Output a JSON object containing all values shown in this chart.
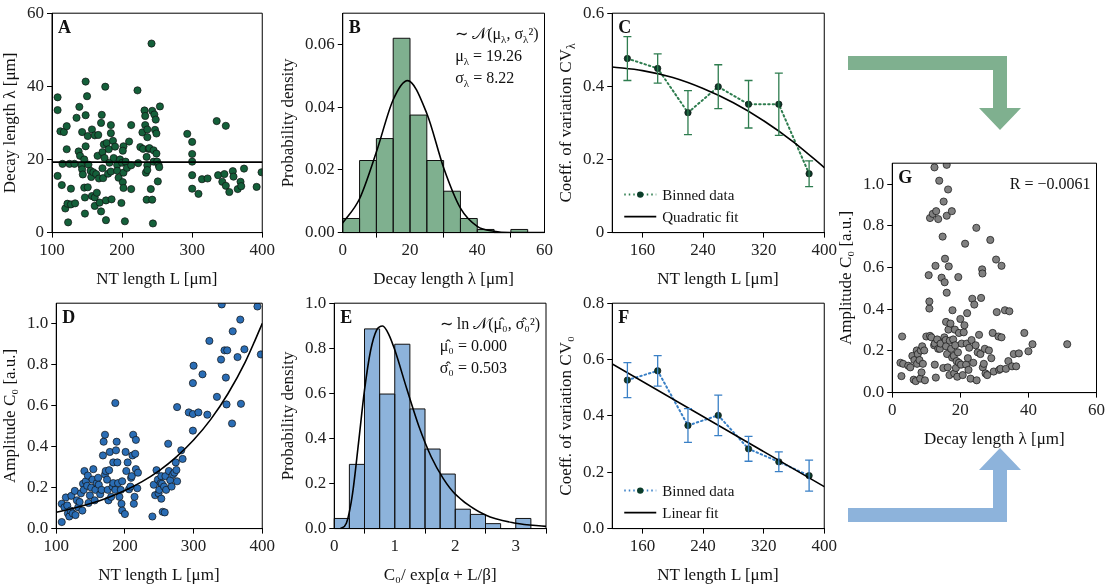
{
  "chart_data": [
    {
      "type": "scatter",
      "title": "A",
      "xlabel": "NT length $_{}$L [μm]",
      "ylabel": "Decay length λ [μm]",
      "xlim": [
        100,
        400
      ],
      "xticks": [
        100,
        200,
        300,
        400
      ],
      "ylim": [
        0,
        60
      ],
      "yticks": [
        0,
        20,
        40,
        60
      ],
      "ref_lines": [
        {
          "axis": "y",
          "value": 19.26,
          "color": "#000000"
        }
      ],
      "series": [
        {
          "color": "#14603a",
          "marker": "circle",
          "x": [
            108,
            108,
            108,
            112,
            117,
            115,
            114,
            119,
            121,
            121,
            122,
            123,
            125,
            127,
            127,
            132,
            135,
            133,
            138,
            139,
            140,
            142,
            143,
            144,
            143,
            146,
            146,
            148,
            148,
            148,
            147,
            147,
            150,
            152,
            151,
            151,
            155,
            156,
            157,
            157,
            159,
            161,
            161,
            161,
            163,
            165,
            164,
            166,
            167,
            168,
            170,
            170,
            172,
            172,
            171,
            173,
            174,
            175,
            177,
            176,
            177,
            178,
            180,
            181,
            182,
            184,
            184,
            184,
            185,
            187,
            188,
            190,
            193,
            193,
            195,
            197,
            199,
            200,
            201,
            202,
            201,
            202,
            202,
            204,
            205,
            207,
            210,
            213,
            213,
            213,
            222,
            223,
            226,
            229,
            230,
            232,
            233,
            233,
            234,
            235,
            235,
            236,
            236,
            236,
            236,
            238,
            239,
            241,
            242,
            243,
            243,
            244,
            245,
            245,
            246,
            247,
            248,
            249,
            249,
            250,
            251,
            252,
            253,
            254,
            293,
            300,
            300,
            300,
            300,
            300,
            309,
            314,
            322,
            335,
            337,
            343,
            346,
            348,
            348,
            353,
            358,
            359,
            365,
            369,
            370,
            374,
            392,
            399
          ],
          "values": [
            37.0,
            33.5,
            15.5,
            27.7,
            27.5,
            18.8,
            13.0,
            6.6,
            22.8,
            29.1,
            7.9,
            2.8,
            18.8,
            12.0,
            7.7,
            18.8,
            31.4,
            8.0,
            22.2,
            34.4,
            21.0,
            18.4,
            17.3,
            15.9,
            27.5,
            20.0,
            12.3,
            23.6,
            41.3,
            32.1,
            9.6,
            5.2,
            37.3,
            18.6,
            12.4,
            26.4,
            16.9,
            15.2,
            10.0,
            28.2,
            16.5,
            9.6,
            26.6,
            7.3,
            16.0,
            21.0,
            10.9,
            26.7,
            14.8,
            8.2,
            30.0,
            5.8,
            22.0,
            17.6,
            32.2,
            14.9,
            24.1,
            20.4,
            8.8,
            39.9,
            3.4,
            24.5,
            16.1,
            22.8,
            19.1,
            27.2,
            29.4,
            16.7,
            9.1,
            25.1,
            20.4,
            23.5,
            18.5,
            16.9,
            15.0,
            20.0,
            8.1,
            19.1,
            13.8,
            23.6,
            22.4,
            16.4,
            12.2,
            3.1,
            19.4,
            17.7,
            24.9,
            18.4,
            29.4,
            11.9,
            38.9,
            19.0,
            23.4,
            27.4,
            22.9,
            33.4,
            31.9,
            29.4,
            16.4,
            9.0,
            20.7,
            18.4,
            17.1,
            26.1,
            28.2,
            22.9,
            23.1,
            11.9,
            51.7,
            33.3,
            9.0,
            2.5,
            22.5,
            19.4,
            32.3,
            28.1,
            30.9,
            21.6,
            27.1,
            19.4,
            14.0,
            18.6,
            17.9,
            34.5,
            27.0,
            24.8,
            21.5,
            19.4,
            15.7,
            12.0,
            10.6,
            14.6,
            14.8,
            30.5,
            15.7,
            13.9,
            16.0,
            29.2,
            12.8,
            11.1,
            16.8,
            15.3,
            11.9,
            13.9,
            12.7,
            17.5,
            12.5,
            16.5
          ]
        }
      ]
    },
    {
      "type": "histogram",
      "title": "B",
      "xlabel": "Decay length λ [μm]",
      "ylabel": "Probability density",
      "xlim": [
        0,
        60
      ],
      "xticks": [
        0,
        20,
        40,
        60
      ],
      "ylim": [
        0,
        0.07
      ],
      "yticks": [
        {
          "value": 0,
          "label": "0.00"
        },
        {
          "value": 0.02,
          "label": "0.02"
        },
        {
          "value": 0.04,
          "label": "0.04"
        },
        {
          "value": 0.06,
          "label": "0.06"
        }
      ],
      "bins": [
        0,
        5,
        10,
        15,
        20,
        25,
        30,
        35,
        40,
        45,
        50,
        55
      ],
      "annotations": [
        "∼ 𝒩(μ$_{λ}$, σ$_{λ}$²)",
        "μ$_{λ}$ = 19.26",
        "σ$_{λ}$ = 8.22"
      ],
      "series": [
        {
          "color": "#7fb08f",
          "values": [
            0.0045,
            0.023,
            0.03,
            0.062,
            0.0375,
            0.023,
            0.0132,
            0.0045,
            0.001,
            0,
            0.001
          ]
        },
        {
          "type": "line",
          "color": "#000000",
          "marker": "none",
          "line_style": "solid",
          "x": [
            0,
            5,
            10,
            15,
            19.26,
            25,
            30,
            35,
            40,
            45,
            50,
            55,
            60
          ],
          "values": [
            0.0031,
            0.0108,
            0.0257,
            0.0424,
            0.0485,
            0.038,
            0.0207,
            0.0078,
            0.002,
            0.0004,
            0,
            0,
            0
          ]
        }
      ]
    },
    {
      "type": "line",
      "title": "C",
      "xlabel": "NT length $_{}$L [μm]",
      "ylabel": "Coeff. of variation CV$_{λ}$",
      "xlim": [
        120,
        400
      ],
      "xticks": [
        160,
        240,
        320,
        400
      ],
      "ylim": [
        0,
        0.6
      ],
      "yticks": [
        0,
        0.2,
        0.4,
        0.6
      ],
      "legend": "bottom left",
      "series": [
        {
          "name": "Binned data",
          "color": "#2e7d4f",
          "marker": "circle",
          "line_style": "dotted",
          "x": [
            140,
            180,
            220,
            260,
            300,
            340,
            380
          ],
          "values": [
            0.476,
            0.449,
            0.328,
            0.399,
            0.351,
            0.351,
            0.161
          ],
          "errors": [
            0.06,
            0.04,
            0.06,
            0.06,
            0.065,
            0.085,
            0.035
          ]
        },
        {
          "name": "Quadratic fit",
          "color": "#000000",
          "marker": "none",
          "line_style": "solid",
          "x": [
            120,
            160,
            200,
            240,
            280,
            320,
            360,
            400
          ],
          "values": [
            0.453,
            0.443,
            0.424,
            0.394,
            0.355,
            0.306,
            0.247,
            0.178
          ]
        }
      ]
    },
    {
      "type": "scatter",
      "title": "D",
      "xlabel": "NT length $_{}$L [μm]",
      "ylabel": "Amplitude C₀ [a.u.]",
      "xlim": [
        100,
        400
      ],
      "xticks": [
        100,
        200,
        300,
        400
      ],
      "ylim": [
        0,
        1.1
      ],
      "yticks": [
        {
          "value": 0,
          "label": "0.0"
        },
        {
          "value": 0.2,
          "label": "0.2"
        },
        {
          "value": 0.4,
          "label": "0.4"
        },
        {
          "value": 0.6,
          "label": "0.6"
        },
        {
          "value": 0.8,
          "label": "0.8"
        },
        {
          "value": 1,
          "label": "1.0"
        }
      ],
      "series": [
        {
          "color": "#2a6db5",
          "marker": "circle",
          "x": [
            108,
            108,
            112,
            114,
            116,
            117,
            119,
            121,
            122,
            124,
            127,
            128,
            130,
            132,
            134,
            136,
            138,
            139,
            140,
            141,
            143,
            145,
            146,
            147,
            149,
            151,
            153,
            154,
            156,
            157,
            159,
            161,
            162,
            164,
            166,
            168,
            169,
            171,
            171,
            172,
            174,
            175,
            176,
            177,
            178,
            180,
            182,
            183,
            183,
            186,
            186,
            187,
            188,
            189,
            190,
            192,
            194,
            195,
            196,
            196,
            200,
            201,
            202,
            204,
            206,
            208,
            209,
            210,
            211,
            212,
            213,
            214,
            215,
            216,
            216,
            218,
            219,
            240,
            242,
            244,
            246,
            248,
            249,
            250,
            252,
            253,
            253,
            254,
            255,
            257,
            258,
            259,
            260,
            263,
            264,
            266,
            268,
            270,
            272,
            274,
            275,
            276,
            276,
            282,
            284,
            293,
            299,
            299,
            300,
            299,
            307,
            313,
            320,
            323,
            334,
            340,
            341,
            345,
            347,
            348,
            349,
            356,
            357,
            364,
            368,
            369,
            374,
            393,
            398
          ],
          "values": [
            0.121,
            0.032,
            0.104,
            0.152,
            0.113,
            0.074,
            0.059,
            0.088,
            0.16,
            0.074,
            0.184,
            0.066,
            0.138,
            0.104,
            0.13,
            0.172,
            0.088,
            0.219,
            0.189,
            0.281,
            0.231,
            0.209,
            0.259,
            0.125,
            0.162,
            0.2,
            0.239,
            0.29,
            0.138,
            0.189,
            0.222,
            0.248,
            0.214,
            0.168,
            0.189,
            0.357,
            0.424,
            0.458,
            0.264,
            0.281,
            0.239,
            0.189,
            0.138,
            0.285,
            0.374,
            0.155,
            0.205,
            0.323,
            0.222,
            0.613,
            0.189,
            0.382,
            0.424,
            0.323,
            0.222,
            0.155,
            0.189,
            0.121,
            0.088,
            0.231,
            0.071,
            0.374,
            0.281,
            0.323,
            0.192,
            0.205,
            0.248,
            0.256,
            0.357,
            0.458,
            0.121,
            0.155,
            0.365,
            0.29,
            0.433,
            0.197,
            0.273,
            0.059,
            0.214,
            0.163,
            0.285,
            0.239,
            0.172,
            0.189,
            0.222,
            0.256,
            0.146,
            0.219,
            0.082,
            0.205,
            0.079,
            0.256,
            0.189,
            0.414,
            0.281,
            0.236,
            0.205,
            0.264,
            0.273,
            0.323,
            0.286,
            0.231,
            0.593,
            0.382,
            0.34,
            0.567,
            0.559,
            0.71,
            0.795,
            0.478,
            0.567,
            0.753,
            0.556,
            0.916,
            0.643,
            0.825,
            1.094,
            0.87,
            0.737,
            0.606,
            0.87,
            0.513,
            0.963,
            0.837,
            1.02,
            0.609,
            0.875,
            1.084,
            0.85
          ]
        },
        {
          "type": "line",
          "color": "#000000",
          "marker": "none",
          "line_style": "solid",
          "x": [
            100,
            125,
            150,
            175,
            200,
            225,
            250,
            275,
            300,
            325,
            350,
            375,
            400
          ],
          "values": [
            0.08,
            0.099,
            0.122,
            0.151,
            0.186,
            0.229,
            0.283,
            0.35,
            0.432,
            0.533,
            0.658,
            0.811,
            1.0
          ]
        }
      ]
    },
    {
      "type": "histogram",
      "title": "E",
      "xlabel": "C₀/ exp[α + L/β]",
      "ylabel": "Probability density",
      "xlim": [
        0,
        3.5
      ],
      "xticks": [
        0,
        1,
        2,
        3
      ],
      "ylim": [
        0,
        1
      ],
      "yticks": [
        {
          "value": 0,
          "label": "0.0"
        },
        {
          "value": 0.2,
          "label": "0.2"
        },
        {
          "value": 0.4,
          "label": "0.4"
        },
        {
          "value": 0.6,
          "label": "0.6"
        },
        {
          "value": 0.8,
          "label": "0.8"
        },
        {
          "value": 1,
          "label": "1.0"
        }
      ],
      "bins": [
        0,
        0.25,
        0.5,
        0.75,
        1,
        1.25,
        1.5,
        1.75,
        2,
        2.25,
        2.5,
        2.75,
        3,
        3.25
      ],
      "annotations": [
        "∼ ln 𝒩(μ̂₀, σ̂₀²)",
        "μ̂₀ = 0.000",
        "σ̂₀ = 0.503"
      ],
      "series": [
        {
          "color": "#8db3db",
          "values": [
            0.045,
            0.285,
            0.886,
            0.597,
            0.818,
            0.531,
            0.353,
            0.242,
            0.086,
            0.063,
            0.022,
            0,
            0.045
          ]
        },
        {
          "type": "line",
          "color": "#000000",
          "marker": "none",
          "line_style": "solid",
          "x": [
            0.1,
            0.2,
            0.3,
            0.4,
            0.5,
            0.6,
            0.7,
            0.8,
            0.9,
            1,
            1.2,
            1.4,
            1.6,
            1.8,
            2,
            2.5,
            3,
            3.5
          ],
          "values": [
            0,
            0.024,
            0.151,
            0.377,
            0.614,
            0.789,
            0.881,
            0.899,
            0.862,
            0.793,
            0.619,
            0.453,
            0.32,
            0.223,
            0.153,
            0.06,
            0.024,
            0.01
          ]
        }
      ]
    },
    {
      "type": "line",
      "title": "F",
      "xlabel": "NT length $_{}$L [μm]",
      "ylabel": "Coeff. of variation CV₀",
      "xlim": [
        120,
        400
      ],
      "xticks": [
        160,
        240,
        320,
        400
      ],
      "ylim": [
        0,
        0.8
      ],
      "yticks": [
        {
          "value": 0,
          "label": "0.0"
        },
        {
          "value": 0.2,
          "label": "0.2"
        },
        {
          "value": 0.4,
          "label": "0.4"
        },
        {
          "value": 0.6,
          "label": "0.6"
        },
        {
          "value": 0.8,
          "label": "0.8"
        }
      ],
      "legend": "bottom left",
      "series": [
        {
          "name": "Binned data",
          "color": "#3a80c6",
          "marker": "circle",
          "line_style": "dotted",
          "x": [
            140,
            180,
            220,
            260,
            300,
            340,
            380
          ],
          "values": [
            0.527,
            0.56,
            0.366,
            0.402,
            0.283,
            0.237,
            0.188
          ],
          "errors": [
            0.062,
            0.054,
            0.06,
            0.072,
            0.044,
            0.035,
            0.055
          ]
        },
        {
          "name": "Linear fit",
          "color": "#000000",
          "marker": "none",
          "line_style": "solid",
          "x": [
            120,
            400
          ],
          "values": [
            0.584,
            0.149
          ]
        }
      ]
    },
    {
      "type": "scatter",
      "title": "G",
      "xlabel": "Decay length λ [μm]",
      "ylabel": "Amplitude C₀ [a.u.]",
      "xlim": [
        0,
        60
      ],
      "xticks": [
        0,
        20,
        40,
        60
      ],
      "ylim": [
        0,
        1.1
      ],
      "yticks": [
        {
          "value": 0,
          "label": "0.0"
        },
        {
          "value": 0.2,
          "label": "0.2"
        },
        {
          "value": 0.4,
          "label": "0.4"
        },
        {
          "value": 0.6,
          "label": "0.6"
        },
        {
          "value": 0.8,
          "label": "0.8"
        },
        {
          "value": 1,
          "label": "1.0"
        }
      ],
      "annotations": [
        "R = −0.0061"
      ],
      "series": [
        {
          "color": "#808080",
          "marker": "circle",
          "x": [
            2.4,
            2.9,
            2.7,
            3.2,
            4.7,
            5.3,
            5.9,
            6.3,
            6.5,
            6.9,
            7.2,
            7.3,
            7.5,
            8.0,
            8.2,
            8.4,
            8.6,
            8.8,
            9.0,
            9.4,
            9.6,
            10.0,
            10.7,
            10.9,
            10.9,
            11.1,
            11.1,
            11.5,
            11.9,
            12.4,
            16.0,
            12.3,
            12.5,
            12.5,
            12.7,
            12.8,
            12.9,
            13.2,
            13.5,
            13.5,
            13.8,
            14.0,
            14.2,
            14.5,
            14.8,
            15.0,
            15.1,
            15.3,
            15.4,
            15.5,
            15.7,
            15.8,
            15.8,
            16.0,
            16.0,
            16.1,
            16.3,
            16.4,
            16.5,
            16.6,
            16.8,
            16.9,
            17.1,
            17.3,
            17.5,
            17.6,
            17.7,
            17.9,
            18.1,
            18.2,
            18.4,
            18.5,
            18.7,
            18.9,
            19.1,
            19.3,
            19.4,
            19.6,
            19.6,
            20.0,
            20.2,
            20.4,
            20.7,
            21.0,
            21.2,
            21.4,
            21.7,
            21.9,
            22.0,
            22.2,
            22.4,
            22.6,
            23.0,
            23.3,
            23.5,
            23.8,
            24.1,
            24.5,
            24.7,
            24.8,
            25.1,
            25.5,
            25.9,
            26.1,
            26.4,
            26.5,
            26.6,
            26.9,
            27.2,
            27.4,
            27.9,
            28.4,
            28.8,
            29.1,
            29.5,
            29.8,
            30.5,
            30.7,
            31.2,
            31.4,
            31.8,
            32.1,
            32.1,
            33.1,
            33.4,
            34.1,
            34.4,
            35.2,
            35.7,
            36.4,
            37.2,
            38.8,
            40.0,
            41.2,
            51.4
          ],
          "values": [
            0.143,
            0.269,
            0.079,
            0.138,
            0.129,
            0.121,
            0.176,
            0.062,
            0.156,
            0.055,
            0.202,
            0.138,
            0.185,
            0.156,
            0.067,
            0.202,
            0.097,
            0.222,
            0.138,
            0.202,
            0.059,
            0.269,
            0.563,
            0.403,
            0.437,
            0.837,
            0.272,
            0.265,
            0.857,
            1.08,
            1.092,
            0.227,
            0.235,
            0.134,
            0.608,
            0.072,
            0.87,
            0.255,
            0.832,
            0.21,
            1.016,
            0.21,
            0.235,
            0.551,
            0.748,
            0.118,
            0.916,
            0.265,
            0.529,
            0.642,
            0.252,
            0.222,
            0.339,
            0.848,
            0.479,
            0.185,
            0.121,
            0.974,
            0.302,
            0.605,
            0.084,
            0.249,
            0.331,
            0.21,
            0.87,
            0.168,
            0.395,
            0.255,
            0.176,
            0.092,
            0.302,
            0.227,
            0.118,
            0.151,
            0.076,
            0.193,
            0.554,
            0.286,
            0.143,
            0.353,
            0.134,
            0.235,
            0.084,
            0.289,
            0.323,
            0.714,
            0.134,
            0.235,
            0.381,
            0.165,
            0.109,
            0.215,
            0.067,
            0.252,
            0.45,
            0.143,
            0.422,
            0.227,
            0.79,
            0.059,
            0.193,
            0.277,
            0.185,
            0.454,
            0.591,
            0.571,
            0.121,
            0.138,
            0.21,
            0.092,
            0.084,
            0.202,
            0.732,
            0.165,
            0.286,
            0.101,
            0.638,
            0.386,
            0.269,
            0.109,
            0.114,
            0.608,
            0.265,
            0.395,
            0.114,
            0.151,
            0.39,
            0.126,
            0.185,
            0.126,
            0.188,
            0.286,
            0.198,
            0.232,
            0.232
          ]
        }
      ]
    }
  ]
}
